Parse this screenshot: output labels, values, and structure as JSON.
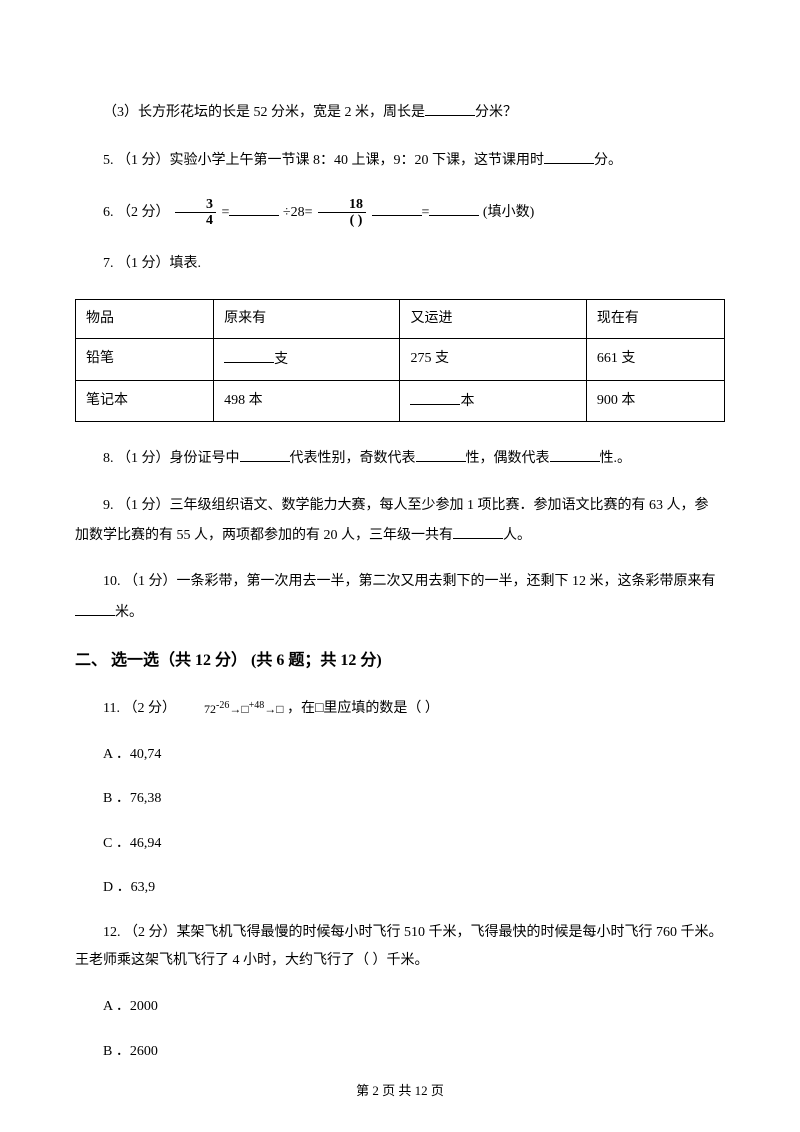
{
  "q3": {
    "text_prefix": "（3）长方形花坛的长是 52 分米，宽是 2 米，周长是",
    "text_suffix": "分米？"
  },
  "q5": {
    "prefix": "5. （1 分）实验小学上午第一节课 8：40 上课，9：20 下课，这节课用时",
    "suffix": "分。"
  },
  "q6": {
    "prefix": "6. （2 分）",
    "frac1_num": "3",
    "frac1_den": "4",
    "eq1": " =",
    "div": "÷28=",
    "frac2_num": "18",
    "frac2_den": "( )",
    "eq2": "=",
    "suffix": "(填小数)"
  },
  "q7": {
    "prefix": "7. （1 分）填表."
  },
  "table": {
    "columns": [
      "物品",
      "原来有",
      "又运进",
      "现在有"
    ],
    "rows": [
      [
        "铅笔",
        {
          "blank": true,
          "suffix": "支"
        },
        "275 支",
        "661 支"
      ],
      [
        "笔记本",
        "498 本",
        {
          "blank": true,
          "suffix": "本"
        },
        "900 本"
      ]
    ]
  },
  "q8": {
    "prefix": "8. （1 分）身份证号中",
    "mid1": "代表性别，奇数代表",
    "mid2": "性，偶数代表",
    "suffix": "性.。"
  },
  "q9": {
    "line1": "9. （1 分）三年级组织语文、数学能力大赛，每人至少参加 1 项比赛．参加语文比赛的有 63 人，参",
    "line2_prefix": "加数学比赛的有 55 人，两项都参加的有 20 人，三年级一共有",
    "line2_suffix": "人。"
  },
  "q10": {
    "line1": "10. （1 分）一条彩带，第一次用去一半，第二次又用去剩下的一半，还剩下 12 米，这条彩带原来有",
    "line2_suffix": "米。"
  },
  "section2": {
    "title": "二、 选一选（共 12 分） (共 6 题；共 12 分)"
  },
  "q11": {
    "prefix": "11. （2 分）",
    "seq_text": "72",
    "arrow1": "-26",
    "arrow2": "+48",
    "suffix": " ，在□里应填的数是（    ）",
    "optA": "A ．40,74",
    "optB": "B ．76,38",
    "optC": "C ．46,94",
    "optD": "D ．63,9"
  },
  "q12": {
    "line1": "12. （2 分）某架飞机飞得最慢的时候每小时飞行 510 千米，飞得最快的时候是每小时飞行 760 千米。",
    "line2": "王老师乘这架飞机飞行了 4 小时，大约飞行了（    ）千米。",
    "optA": "A ．2000",
    "optB": "B ．2600"
  },
  "footer": {
    "text": "第 2 页 共 12 页"
  }
}
